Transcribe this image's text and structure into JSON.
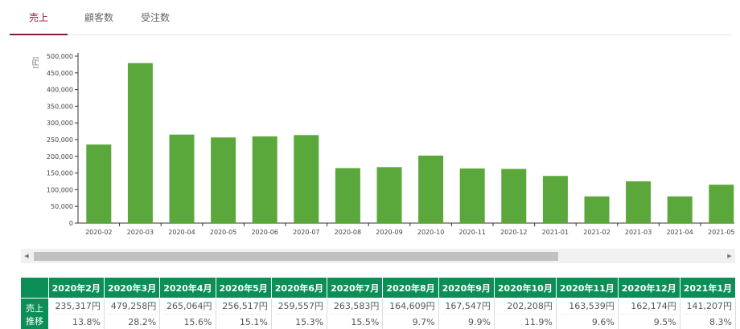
{
  "tabs": [
    {
      "label": "売上",
      "active": true
    },
    {
      "label": "顧客数",
      "active": false
    },
    {
      "label": "受注数",
      "active": false
    }
  ],
  "chart_data": {
    "type": "bar",
    "ylabel": "[円]",
    "ylim": [
      0,
      500000
    ],
    "yticks": [
      "0",
      "50,000",
      "100,000",
      "150,000",
      "200,000",
      "250,000",
      "300,000",
      "350,000",
      "400,000",
      "450,000",
      "500,000"
    ],
    "categories": [
      "2020-02",
      "2020-03",
      "2020-04",
      "2020-05",
      "2020-06",
      "2020-07",
      "2020-08",
      "2020-09",
      "2020-10",
      "2020-11",
      "2020-12",
      "2021-01",
      "2021-02",
      "2021-03",
      "2021-04",
      "2021-05"
    ],
    "values": [
      235317,
      479258,
      265064,
      256517,
      259557,
      263583,
      164609,
      167547,
      202208,
      163539,
      162174,
      141207,
      80000,
      125000,
      80000,
      115000
    ],
    "bar_color": "#5aa83b",
    "grid": false
  },
  "table": {
    "row_label": "売上推移",
    "columns": [
      {
        "month": "2020年2月",
        "amount": "235,317円",
        "pct": "13.8%"
      },
      {
        "month": "2020年3月",
        "amount": "479,258円",
        "pct": "28.2%"
      },
      {
        "month": "2020年4月",
        "amount": "265,064円",
        "pct": "15.6%"
      },
      {
        "month": "2020年5月",
        "amount": "256,517円",
        "pct": "15.1%"
      },
      {
        "month": "2020年6月",
        "amount": "259,557円",
        "pct": "15.3%"
      },
      {
        "month": "2020年7月",
        "amount": "263,583円",
        "pct": "15.5%"
      },
      {
        "month": "2020年8月",
        "amount": "164,609円",
        "pct": "9.7%"
      },
      {
        "month": "2020年9月",
        "amount": "167,547円",
        "pct": "9.9%"
      },
      {
        "month": "2020年10月",
        "amount": "202,208円",
        "pct": "11.9%"
      },
      {
        "month": "2020年11月",
        "amount": "163,539円",
        "pct": "9.6%"
      },
      {
        "month": "2020年12月",
        "amount": "162,174円",
        "pct": "9.5%"
      },
      {
        "month": "2021年1月",
        "amount": "141,207円",
        "pct": "8.3%"
      }
    ],
    "header_color": "#0b8f57"
  },
  "scrollbar": {
    "left_arrow": "◀",
    "right_arrow": "▶"
  }
}
